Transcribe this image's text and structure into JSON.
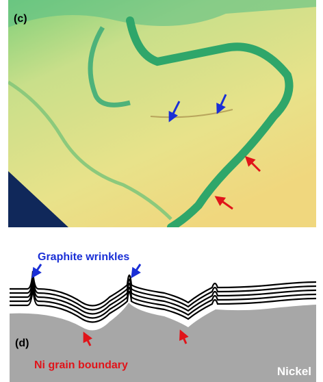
{
  "panel_c": {
    "label": "(c)"
  },
  "panel_d": {
    "label": "(d)",
    "wrinkle_label": "Graphite wrinkles",
    "boundary_label": "Ni grain boundary",
    "substrate_label": "Nickel"
  }
}
